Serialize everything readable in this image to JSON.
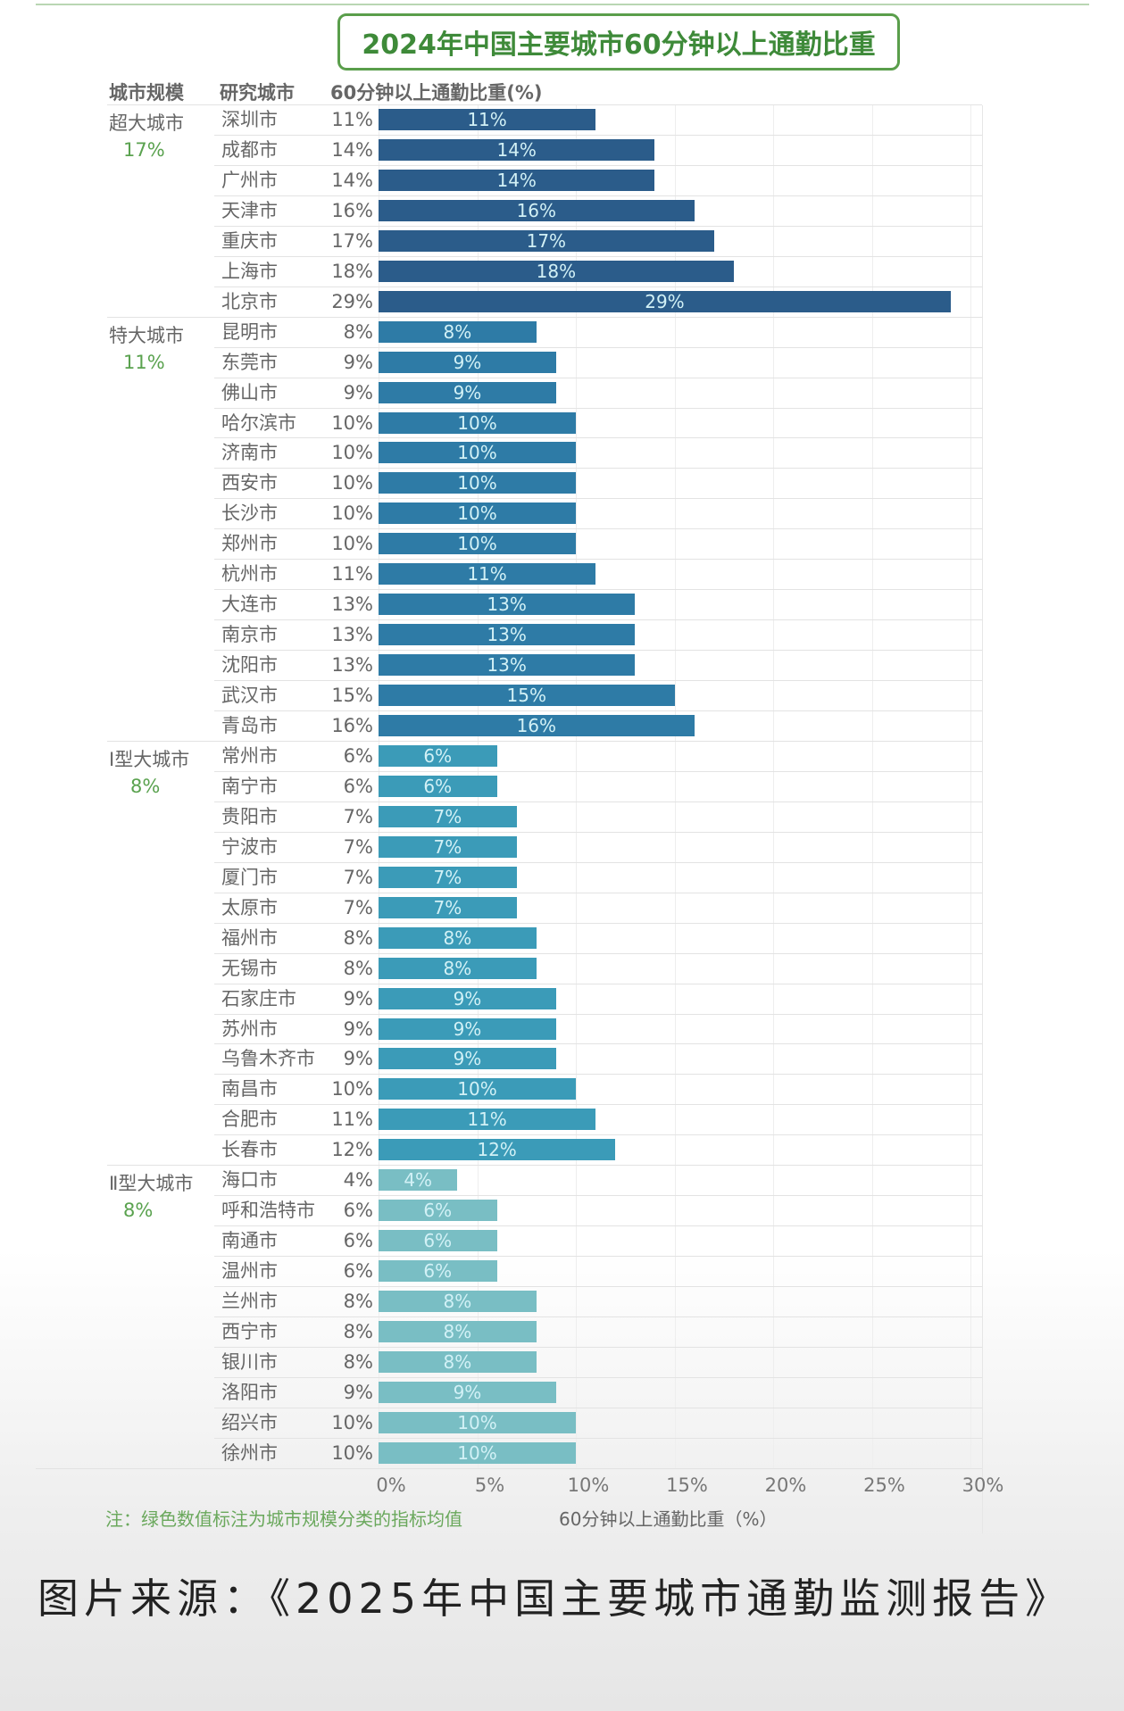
{
  "chart_data": {
    "type": "bar",
    "orientation": "horizontal",
    "title": "2024年中国主要城市60分钟以上通勤比重",
    "column_headers": [
      "城市规模",
      "研究城市",
      "60分钟以上通勤比重(%)"
    ],
    "xlabel": "60分钟以上通勤比重（%）",
    "xlim": [
      0,
      30
    ],
    "x_ticks": [
      "0%",
      "5%",
      "10%",
      "15%",
      "20%",
      "25%",
      "30%"
    ],
    "grid": true,
    "groups": [
      {
        "name": "超大城市",
        "average": "17%",
        "color": "#2b5c8a",
        "cities": [
          "深圳市",
          "成都市",
          "广州市",
          "天津市",
          "重庆市",
          "上海市",
          "北京市"
        ],
        "values": [
          11,
          14,
          14,
          16,
          17,
          18,
          29
        ]
      },
      {
        "name": "特大城市",
        "average": "11%",
        "color": "#2e7ba6",
        "cities": [
          "昆明市",
          "东莞市",
          "佛山市",
          "哈尔滨市",
          "济南市",
          "西安市",
          "长沙市",
          "郑州市",
          "杭州市",
          "大连市",
          "南京市",
          "沈阳市",
          "武汉市",
          "青岛市"
        ],
        "values": [
          8,
          9,
          9,
          10,
          10,
          10,
          10,
          10,
          11,
          13,
          13,
          13,
          15,
          16
        ]
      },
      {
        "name": "Ⅰ型大城市",
        "average": "8%",
        "color": "#3b9bb8",
        "cities": [
          "常州市",
          "南宁市",
          "贵阳市",
          "宁波市",
          "厦门市",
          "太原市",
          "福州市",
          "无锡市",
          "石家庄市",
          "苏州市",
          "乌鲁木齐市",
          "南昌市",
          "合肥市",
          "长春市"
        ],
        "values": [
          6,
          6,
          7,
          7,
          7,
          7,
          8,
          8,
          9,
          9,
          9,
          10,
          11,
          12
        ]
      },
      {
        "name": "Ⅱ型大城市",
        "average": "8%",
        "color": "#79bec4",
        "cities": [
          "海口市",
          "呼和浩特市",
          "南通市",
          "温州市",
          "兰州市",
          "西宁市",
          "银川市",
          "洛阳市",
          "绍兴市",
          "徐州市"
        ],
        "values": [
          4,
          6,
          6,
          6,
          8,
          8,
          8,
          9,
          10,
          10
        ]
      }
    ],
    "note": "注：绿色数值标注为城市规模分类的指标均值"
  },
  "caption": "图片来源：《2025年中国主要城市通勤监测报告》"
}
